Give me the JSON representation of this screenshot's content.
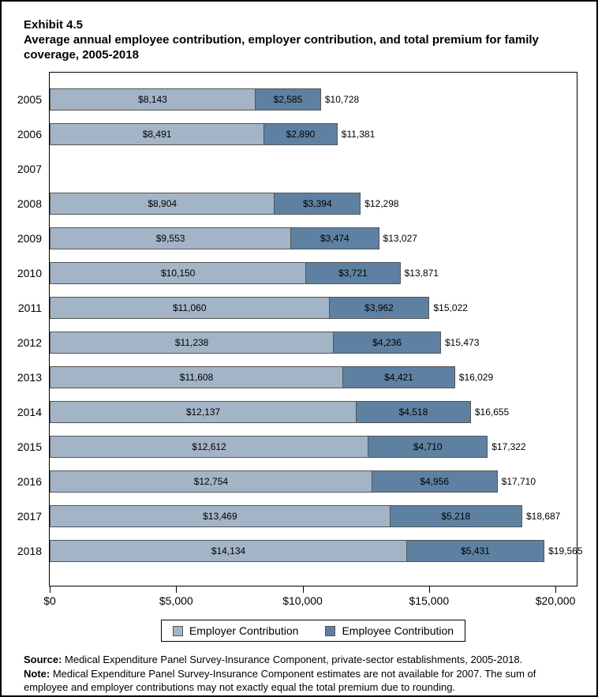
{
  "page": {
    "exhibit_label": "Exhibit 4.5",
    "title": "Average annual employee contribution, employer contribution, and total premium for family coverage, 2005-2018"
  },
  "chart_data": {
    "type": "bar",
    "orientation": "horizontal",
    "stacked": true,
    "categories": [
      "2005",
      "2006",
      "2007",
      "2008",
      "2009",
      "2010",
      "2011",
      "2012",
      "2013",
      "2014",
      "2015",
      "2016",
      "2017",
      "2018"
    ],
    "series": [
      {
        "name": "Employer Contribution",
        "color": "#A3B4C6",
        "values": [
          8143,
          8491,
          null,
          8904,
          9553,
          10150,
          11060,
          11238,
          11608,
          12137,
          12612,
          12754,
          13469,
          14134
        ],
        "labels": [
          "$8,143",
          "$8,491",
          null,
          "$8,904",
          "$9,553",
          "$10,150",
          "$11,060",
          "$11,238",
          "$11,608",
          "$12,137",
          "$12,612",
          "$12,754",
          "$13,469",
          "$14,134"
        ]
      },
      {
        "name": "Employee Contribution",
        "color": "#5E81A2",
        "values": [
          2585,
          2890,
          null,
          3394,
          3474,
          3721,
          3962,
          4236,
          4421,
          4518,
          4710,
          4956,
          5218,
          5431
        ],
        "labels": [
          "$2,585",
          "$2,890",
          null,
          "$3,394",
          "$3,474",
          "$3,721",
          "$3,962",
          "$4,236",
          "$4,421",
          "$4,518",
          "$4,710",
          "$4,956",
          "$5,218",
          "$5,431"
        ]
      }
    ],
    "totals": [
      10728,
      11381,
      null,
      12298,
      13027,
      13871,
      15022,
      15473,
      16029,
      16655,
      17322,
      17710,
      18687,
      19565
    ],
    "total_labels": [
      "$10,728",
      "$11,381",
      null,
      "$12,298",
      "$13,027",
      "$13,871",
      "$15,022",
      "$15,473",
      "$16,029",
      "$16,655",
      "$17,322",
      "$17,710",
      "$18,687",
      "$19,565"
    ],
    "x_axis": {
      "max": 20840,
      "ticks": [
        {
          "value": 0,
          "label": "$0"
        },
        {
          "value": 5000,
          "label": "$5,000"
        },
        {
          "value": 10000,
          "label": "$10,000"
        },
        {
          "value": 15000,
          "label": "$15,000"
        },
        {
          "value": 20000,
          "label": "$20,000"
        }
      ]
    },
    "legend_position": "bottom",
    "grid": false
  },
  "legend": {
    "items": [
      {
        "label": "Employer Contribution",
        "color": "#A3B4C6"
      },
      {
        "label": "Employee Contribution",
        "color": "#5E81A2"
      }
    ]
  },
  "footer": {
    "source_label": "Source:",
    "source_text": " Medical Expenditure Panel Survey-Insurance Component, private-sector establishments, 2005-2018.",
    "note_label": "Note:",
    "note_text": " Medical Expenditure Panel Survey-Insurance Component estimates are not available for 2007. The sum of employee and employer contributions may not exactly equal the total premium due to rounding."
  }
}
